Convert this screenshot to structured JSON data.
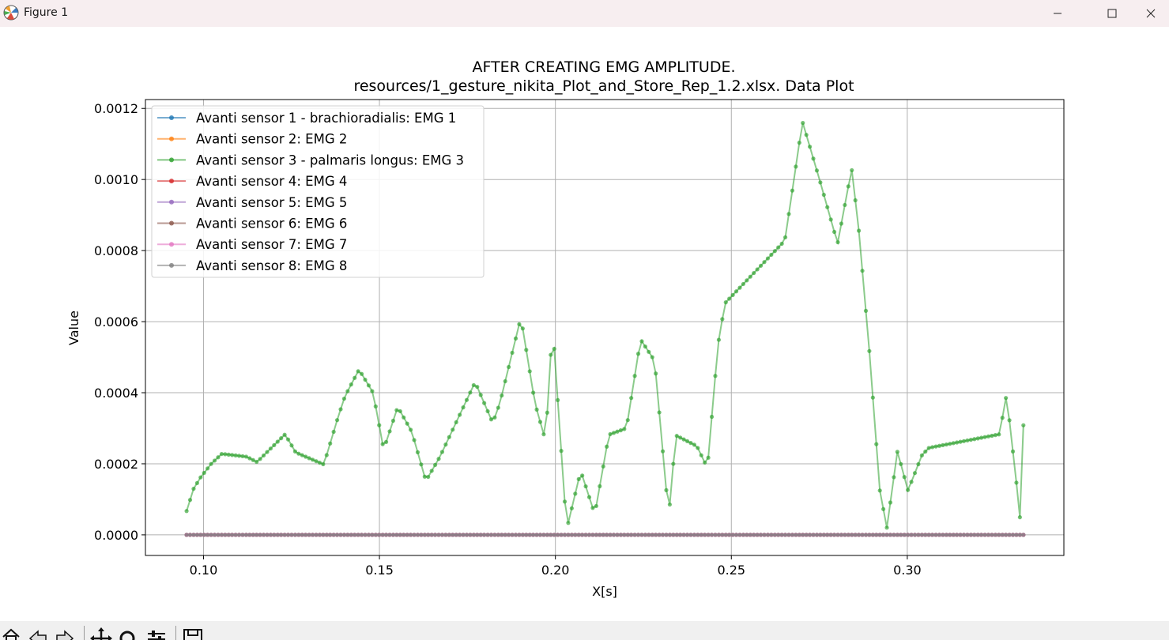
{
  "window": {
    "title": "Figure 1",
    "minimize_icon": "minimize-icon",
    "maximize_icon": "maximize-icon",
    "close_icon": "close-icon"
  },
  "toolbar": {
    "buttons": [
      "home-icon",
      "back-icon",
      "forward-icon",
      "pan-icon",
      "zoom-icon",
      "configure-subplots-icon",
      "save-icon"
    ]
  },
  "colors": {
    "EMG 1": "#1f77b4",
    "EMG 2": "#ff7f0e",
    "EMG 3": "#2ca02c",
    "EMG 4": "#d62728",
    "EMG 5": "#9467bd",
    "EMG 6": "#8c564b",
    "EMG 7": "#e377c2",
    "EMG 8": "#7f7f7f"
  },
  "chart_data": {
    "type": "line",
    "title_line1": "AFTER CREATING EMG AMPLITUDE.",
    "title_line2": "resources/1_gesture_nikita_Plot_and_Store_Rep_1.2.xlsx. Data Plot",
    "xlabel": "X[s]",
    "ylabel": "Value",
    "xlim": [
      0.0835,
      0.3445
    ],
    "ylim": [
      -5.8e-05,
      0.001225
    ],
    "xticks": [
      0.1,
      0.15,
      0.2,
      0.25,
      0.3
    ],
    "xtick_labels": [
      "0.10",
      "0.15",
      "0.20",
      "0.25",
      "0.30"
    ],
    "yticks": [
      0.0,
      0.0002,
      0.0004,
      0.0006,
      0.0008,
      0.001,
      0.0012
    ],
    "ytick_labels": [
      "0.0000",
      "0.0002",
      "0.0004",
      "0.0006",
      "0.0008",
      "0.0010",
      "0.0012"
    ],
    "grid": true,
    "legend_position": "upper-left",
    "x_start": 0.0952,
    "x_end": 0.333,
    "point_count": 240,
    "series": [
      {
        "name": "Avanti sensor 1 - brachioradialis: EMG 1",
        "constant": 0.0
      },
      {
        "name": "Avanti sensor 2: EMG 2",
        "constant": 0.0
      },
      {
        "name": "Avanti sensor 3 - palmaris longus: EMG 3",
        "points": [
          [
            0.0952,
            6.7e-05
          ],
          [
            0.0972,
            0.00013
          ],
          [
            0.0992,
            0.000162
          ],
          [
            0.1022,
            0.0002
          ],
          [
            0.1052,
            0.000228
          ],
          [
            0.1122,
            0.00022
          ],
          [
            0.1152,
            0.000205
          ],
          [
            0.1232,
            0.000283
          ],
          [
            0.1262,
            0.000232
          ],
          [
            0.1342,
            0.000198
          ],
          [
            0.1382,
            0.00033
          ],
          [
            0.1402,
            0.00039
          ],
          [
            0.1442,
            0.000465
          ],
          [
            0.1482,
            0.0004
          ],
          [
            0.1502,
            0.000294
          ],
          [
            0.1512,
            0.00024
          ],
          [
            0.1552,
            0.00036
          ],
          [
            0.1592,
            0.00029
          ],
          [
            0.1632,
            0.000152
          ],
          [
            0.1672,
            0.00022
          ],
          [
            0.1772,
            0.00043
          ],
          [
            0.1822,
            0.000315
          ],
          [
            0.1842,
            0.00037
          ],
          [
            0.1902,
            0.000612
          ],
          [
            0.1942,
            0.00037
          ],
          [
            0.1972,
            0.000265
          ],
          [
            0.1992,
            0.000592
          ],
          [
            0.2012,
            0.000302
          ],
          [
            0.2022,
            0.00016
          ],
          [
            0.2032,
            1.5e-05
          ],
          [
            0.2072,
            0.00018
          ],
          [
            0.2112,
            5.8e-05
          ],
          [
            0.2132,
            0.00017
          ],
          [
            0.2152,
            0.000282
          ],
          [
            0.2202,
            0.0003
          ],
          [
            0.2242,
            0.00055
          ],
          [
            0.2282,
            0.00049
          ],
          [
            0.2302,
            0.00027
          ],
          [
            0.2322,
            5e-05
          ],
          [
            0.2342,
            0.00028
          ],
          [
            0.2402,
            0.00025
          ],
          [
            0.2432,
            0.000188
          ],
          [
            0.2462,
            0.000535
          ],
          [
            0.2482,
            0.000652
          ],
          [
            0.2652,
            0.000828
          ],
          [
            0.2672,
            0.00096
          ],
          [
            0.2702,
            0.001163
          ],
          [
            0.2752,
            0.000995
          ],
          [
            0.2802,
            0.00082
          ],
          [
            0.2832,
            0.000978
          ],
          [
            0.2842,
            0.00103
          ],
          [
            0.2862,
            0.00086
          ],
          [
            0.2892,
            0.00052
          ],
          [
            0.2922,
            0.000125
          ],
          [
            0.2942,
            2e-05
          ],
          [
            0.2972,
            0.000235
          ],
          [
            0.3002,
            0.000125
          ],
          [
            0.3042,
            0.000225
          ],
          [
            0.3062,
            0.000245
          ],
          [
            0.3262,
            0.000283
          ],
          [
            0.3282,
            0.000395
          ],
          [
            0.3312,
            0.00013
          ],
          [
            0.3322,
            3e-05
          ],
          [
            0.3332,
            0.000378
          ]
        ]
      },
      {
        "name": "Avanti sensor 4: EMG 4",
        "constant": 0.0
      },
      {
        "name": "Avanti sensor 5: EMG 5",
        "constant": 0.0
      },
      {
        "name": "Avanti sensor 6: EMG 6",
        "constant": 0.0
      },
      {
        "name": "Avanti sensor 7: EMG 7",
        "constant": 0.0
      },
      {
        "name": "Avanti sensor 8: EMG 8",
        "constant": 0.0
      }
    ]
  }
}
